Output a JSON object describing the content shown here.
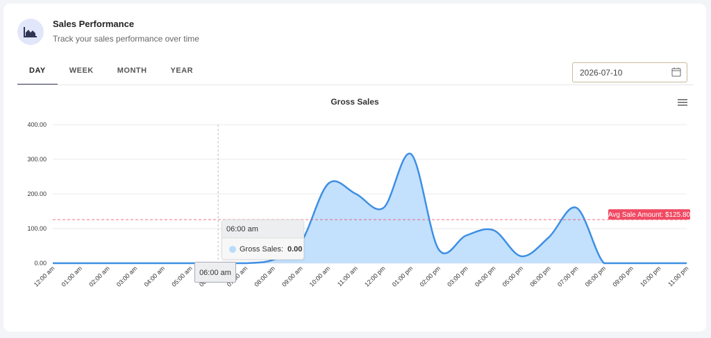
{
  "header": {
    "title": "Sales Performance",
    "subtitle": "Track your sales performance over time",
    "icon": "area-chart-icon"
  },
  "tabs": [
    {
      "label": "DAY",
      "active": true
    },
    {
      "label": "WEEK",
      "active": false
    },
    {
      "label": "MONTH",
      "active": false
    },
    {
      "label": "YEAR",
      "active": false
    }
  ],
  "date_picker": {
    "value": "2026-07-10",
    "icon": "calendar-icon"
  },
  "tooltip": {
    "title": "06:00 am",
    "series": "Gross Sales:",
    "value": "0.00"
  },
  "xaxis_tooltip": "06:00 am",
  "colors": {
    "line": "#3d8fe3",
    "fill": "#c3e0fc",
    "avg": "#f04a63",
    "accent": "#3b3d5a"
  },
  "chart_data": {
    "type": "area",
    "title": "Gross Sales",
    "categories": [
      "12:00 am",
      "01:00 am",
      "02:00 am",
      "03:00 am",
      "04:00 am",
      "05:00 am",
      "06:00 am",
      "07:00 am",
      "08:00 am",
      "09:00 am",
      "10:00 am",
      "11:00 am",
      "12:00 pm",
      "01:00 pm",
      "02:00 pm",
      "03:00 pm",
      "04:00 pm",
      "05:00 pm",
      "06:00 pm",
      "07:00 pm",
      "08:00 pm",
      "09:00 pm",
      "10:00 pm",
      "11:00 pm"
    ],
    "series": [
      {
        "name": "Gross Sales",
        "values": [
          0,
          0,
          0,
          0,
          0,
          0,
          0,
          0,
          10,
          60,
          230,
          200,
          160,
          315,
          40,
          80,
          95,
          20,
          75,
          160,
          0,
          0,
          0,
          0
        ]
      }
    ],
    "yticks": [
      "0.00",
      "100.00",
      "200.00",
      "300.00",
      "400.00"
    ],
    "ylim": [
      0,
      400
    ],
    "annotation": {
      "label": "Avg Sale Amount: $125.80",
      "value": 125.8
    },
    "grid": true
  }
}
